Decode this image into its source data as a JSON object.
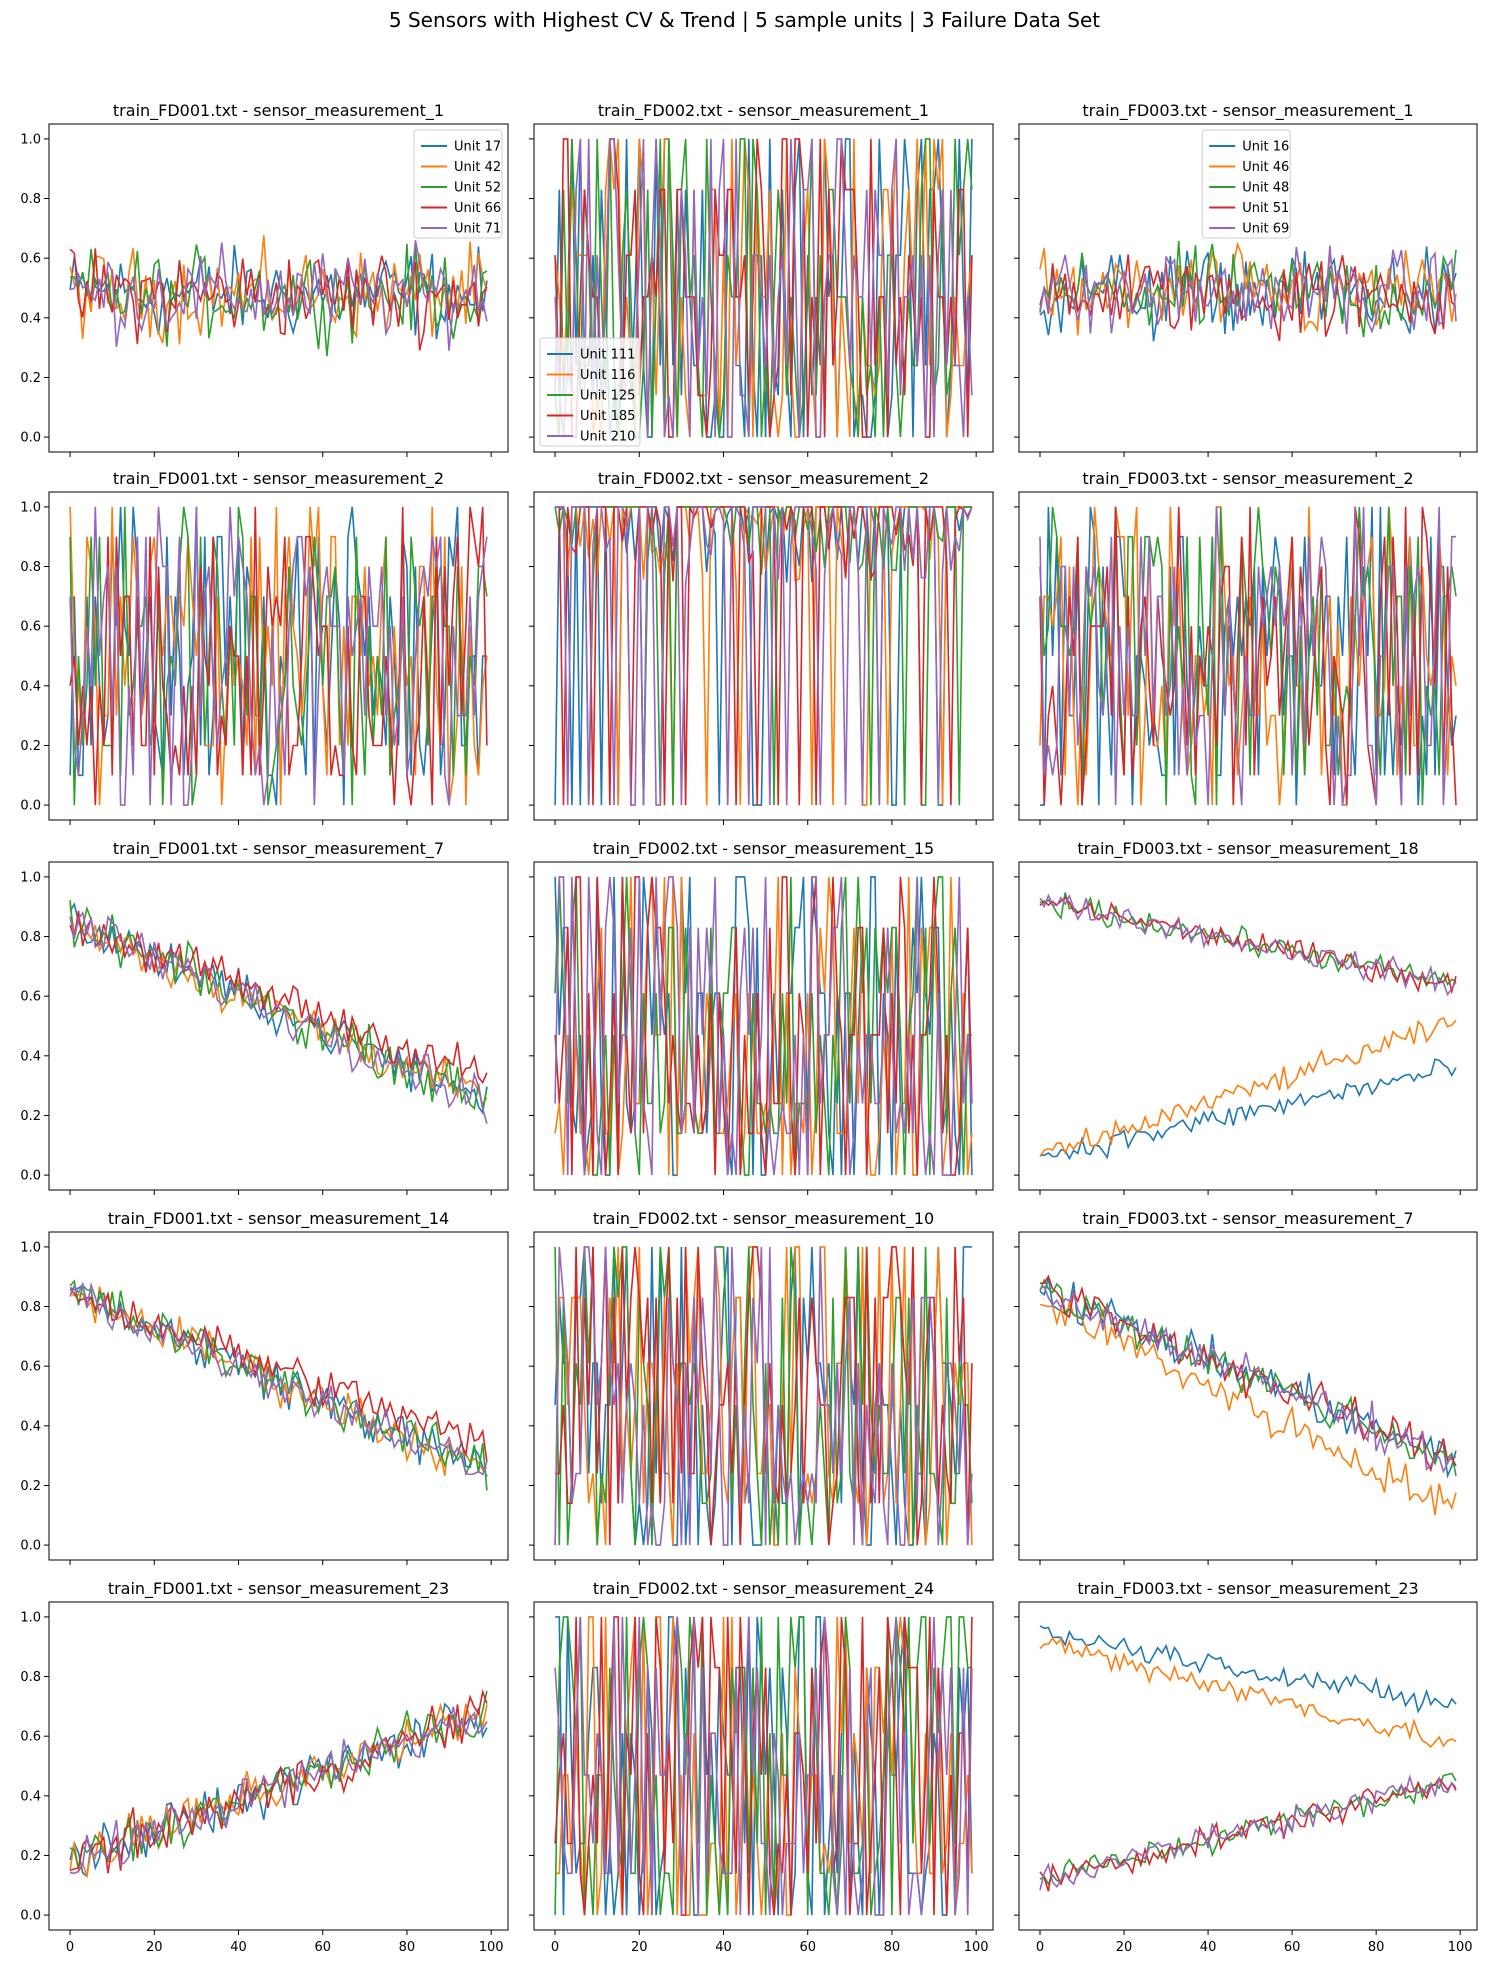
{
  "figure": {
    "suptitle": "5 Sensors with Highest CV & Trend | 5 sample units | 3 Failure Data Set"
  },
  "colors": [
    "#1f77b4",
    "#ff7f0e",
    "#2ca02c",
    "#d62728",
    "#9467bd"
  ],
  "chart_data": [
    {
      "type": "line",
      "title": "train_FD001.txt - sensor_measurement_1",
      "units": [
        "Unit 17",
        "Unit 42",
        "Unit 52",
        "Unit 66",
        "Unit 71"
      ],
      "pattern": "noise",
      "legend": "top-right",
      "ylim": [
        0,
        1
      ],
      "xlim": [
        0,
        100
      ]
    },
    {
      "type": "line",
      "title": "train_FD002.txt - sensor_measurement_1",
      "units": [
        "Unit 111",
        "Unit 116",
        "Unit 125",
        "Unit 185",
        "Unit 210"
      ],
      "pattern": "discrete",
      "legend": "lower-left",
      "ylim": [
        0,
        1
      ],
      "xlim": [
        0,
        100
      ]
    },
    {
      "type": "line",
      "title": "train_FD003.txt - sensor_measurement_1",
      "units": [
        "Unit 16",
        "Unit 46",
        "Unit 48",
        "Unit 51",
        "Unit 69"
      ],
      "pattern": "noise",
      "legend": "top-center",
      "ylim": [
        0,
        1
      ],
      "xlim": [
        0,
        100
      ]
    },
    {
      "type": "line",
      "title": "train_FD001.txt - sensor_measurement_2",
      "units": [
        "Unit 17",
        "Unit 42",
        "Unit 52",
        "Unit 66",
        "Unit 71"
      ],
      "pattern": "steps",
      "ylim": [
        0,
        1
      ],
      "xlim": [
        0,
        100
      ]
    },
    {
      "type": "line",
      "title": "train_FD002.txt - sensor_measurement_2",
      "units": [
        "Unit 111",
        "Unit 116",
        "Unit 125",
        "Unit 185",
        "Unit 210"
      ],
      "pattern": "binaryhigh",
      "ylim": [
        0,
        1
      ],
      "xlim": [
        0,
        100
      ]
    },
    {
      "type": "line",
      "title": "train_FD003.txt - sensor_measurement_2",
      "units": [
        "Unit 16",
        "Unit 46",
        "Unit 48",
        "Unit 51",
        "Unit 69"
      ],
      "pattern": "steps",
      "ylim": [
        0,
        1
      ],
      "xlim": [
        0,
        100
      ]
    },
    {
      "type": "line",
      "title": "train_FD001.txt - sensor_measurement_7",
      "units": [
        "Unit 17",
        "Unit 42",
        "Unit 52",
        "Unit 66",
        "Unit 71"
      ],
      "pattern": "decreasing",
      "ylim": [
        0,
        1
      ],
      "xlim": [
        0,
        100
      ]
    },
    {
      "type": "line",
      "title": "train_FD002.txt - sensor_measurement_15",
      "units": [
        "Unit 111",
        "Unit 116",
        "Unit 125",
        "Unit 185",
        "Unit 210"
      ],
      "pattern": "discrete",
      "ylim": [
        0,
        1
      ],
      "xlim": [
        0,
        100
      ]
    },
    {
      "type": "line",
      "title": "train_FD003.txt - sensor_measurement_18",
      "units": [
        "Unit 16",
        "Unit 46",
        "Unit 48",
        "Unit 51",
        "Unit 69"
      ],
      "pattern": "split18",
      "ylim": [
        0,
        1
      ],
      "xlim": [
        0,
        100
      ]
    },
    {
      "type": "line",
      "title": "train_FD001.txt - sensor_measurement_14",
      "units": [
        "Unit 17",
        "Unit 42",
        "Unit 52",
        "Unit 66",
        "Unit 71"
      ],
      "pattern": "decreasing",
      "ylim": [
        0,
        1
      ],
      "xlim": [
        0,
        100
      ]
    },
    {
      "type": "line",
      "title": "train_FD002.txt - sensor_measurement_10",
      "units": [
        "Unit 111",
        "Unit 116",
        "Unit 125",
        "Unit 185",
        "Unit 210"
      ],
      "pattern": "discrete",
      "ylim": [
        0,
        1
      ],
      "xlim": [
        0,
        100
      ]
    },
    {
      "type": "line",
      "title": "train_FD003.txt - sensor_measurement_7",
      "units": [
        "Unit 16",
        "Unit 46",
        "Unit 48",
        "Unit 51",
        "Unit 69"
      ],
      "pattern": "decreasing3",
      "ylim": [
        0,
        1
      ],
      "xlim": [
        0,
        100
      ]
    },
    {
      "type": "line",
      "title": "train_FD001.txt - sensor_measurement_23",
      "units": [
        "Unit 17",
        "Unit 42",
        "Unit 52",
        "Unit 66",
        "Unit 71"
      ],
      "pattern": "increasing",
      "ylim": [
        0,
        1
      ],
      "xlim": [
        0,
        100
      ]
    },
    {
      "type": "line",
      "title": "train_FD002.txt - sensor_measurement_24",
      "units": [
        "Unit 111",
        "Unit 116",
        "Unit 125",
        "Unit 185",
        "Unit 210"
      ],
      "pattern": "discrete",
      "ylim": [
        0,
        1
      ],
      "xlim": [
        0,
        100
      ]
    },
    {
      "type": "line",
      "title": "train_FD003.txt - sensor_measurement_23",
      "units": [
        "Unit 16",
        "Unit 46",
        "Unit 48",
        "Unit 51",
        "Unit 69"
      ],
      "pattern": "split23",
      "ylim": [
        0,
        1
      ],
      "xlim": [
        0,
        100
      ]
    }
  ],
  "axes": {
    "yticks": [
      "0.0",
      "0.2",
      "0.4",
      "0.6",
      "0.8",
      "1.0"
    ],
    "xticks": [
      "0",
      "20",
      "40",
      "60",
      "80",
      "100"
    ]
  }
}
